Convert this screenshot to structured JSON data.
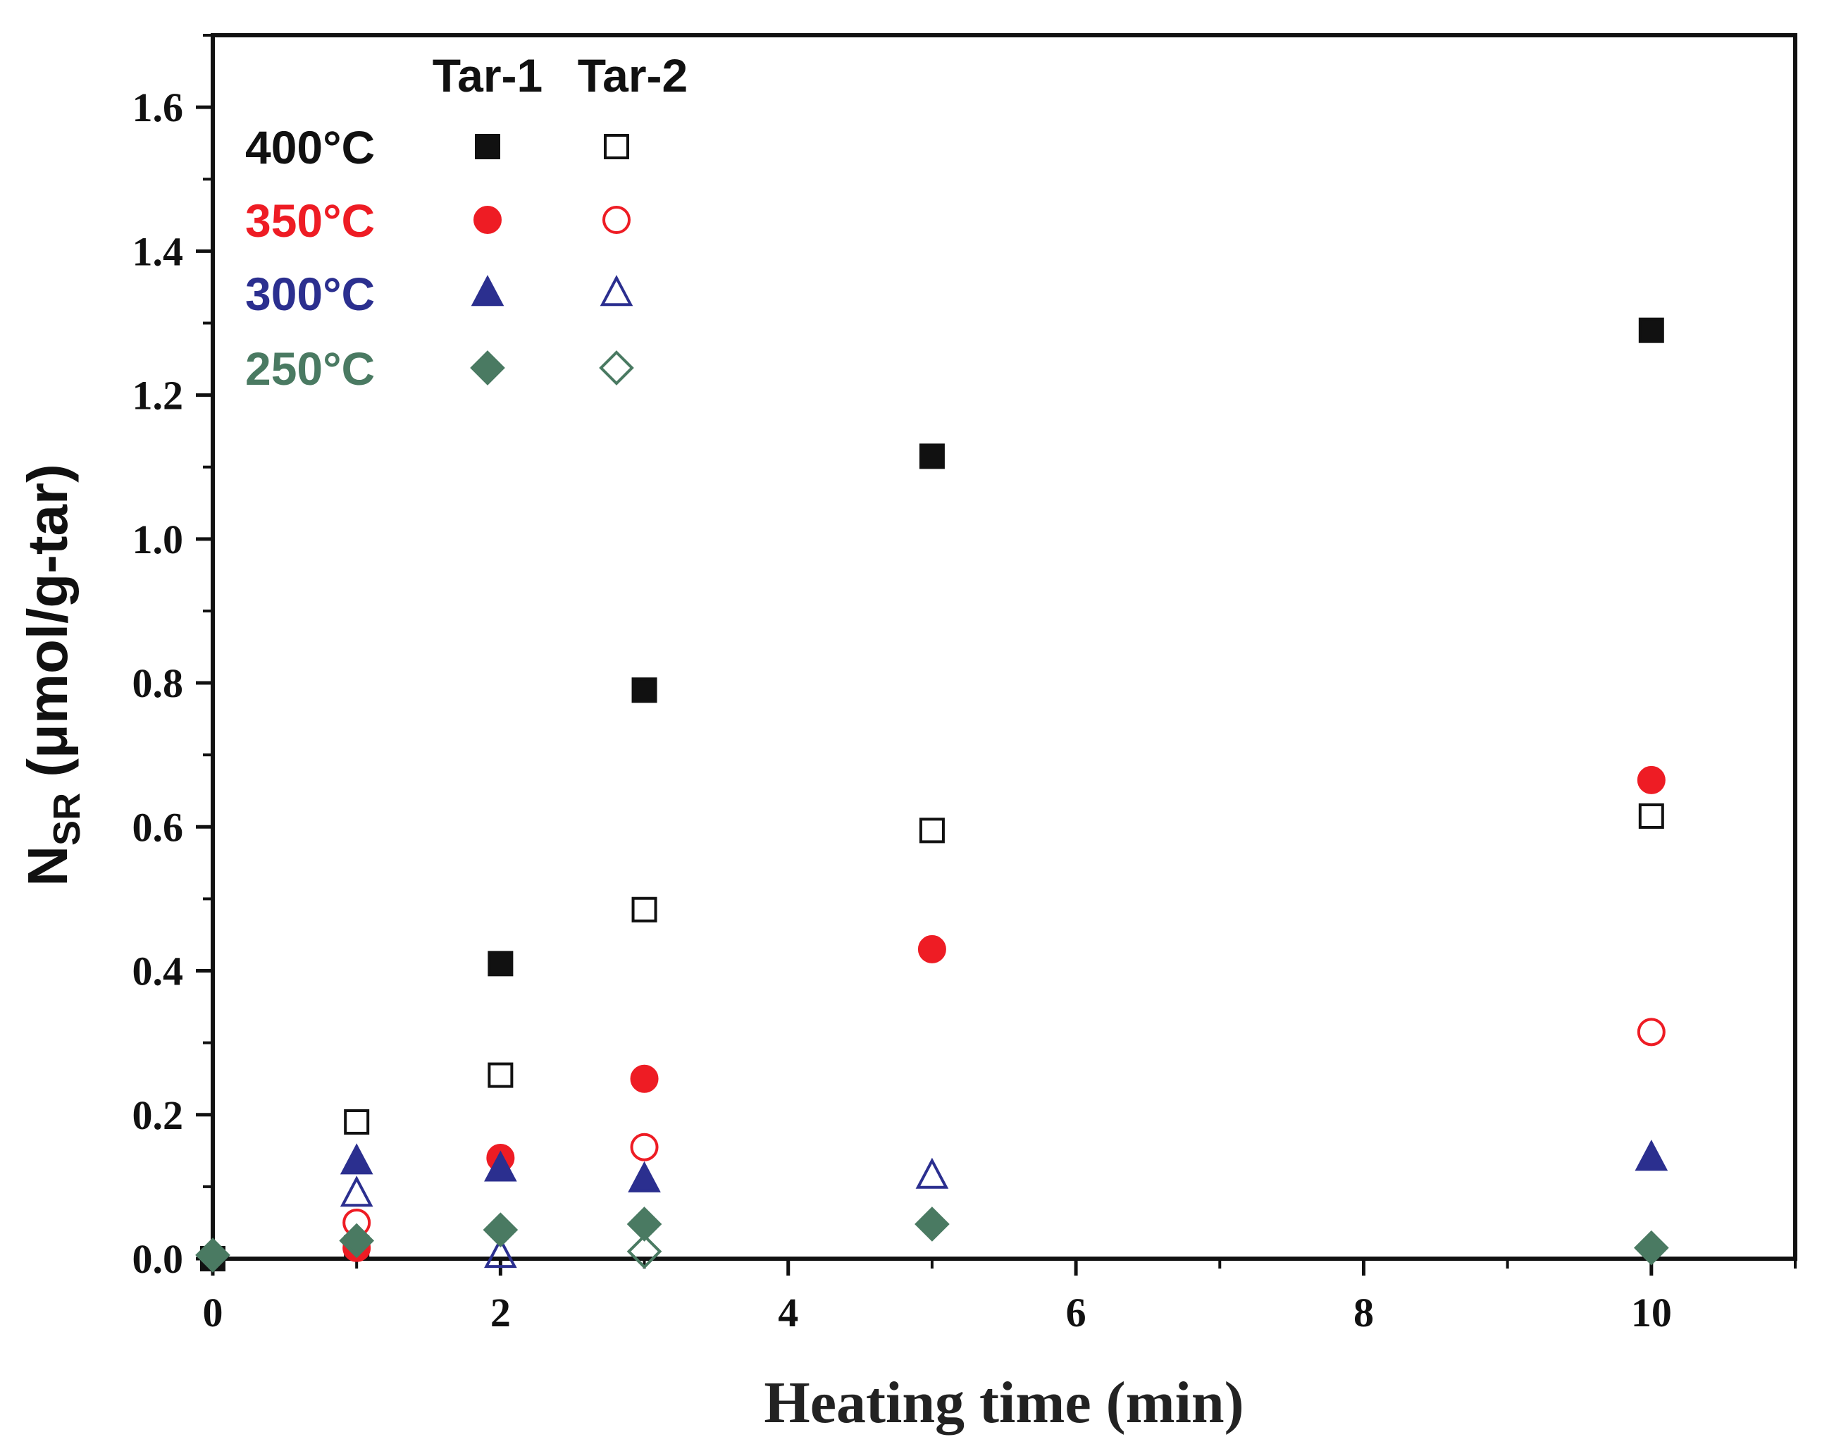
{
  "chart_data": {
    "type": "scatter",
    "title": "",
    "xlabel": "Heating time (min)",
    "ylabel_main": "N",
    "ylabel_sub": "SR",
    "ylabel_rest": " (μmol/g-tar)",
    "xlim": [
      0,
      11
    ],
    "ylim": [
      0,
      1.7
    ],
    "xticks": [
      0,
      2,
      4,
      6,
      8,
      10
    ],
    "xtick_labels": [
      "0",
      "2",
      "4",
      "6",
      "8",
      "10"
    ],
    "yticks": [
      0,
      0.2,
      0.4,
      0.6,
      0.8,
      1.0,
      1.2,
      1.4,
      1.6
    ],
    "ytick_labels": [
      "0.0",
      "0.2",
      "0.4",
      "0.6",
      "0.8",
      "1.0",
      "1.2",
      "1.4",
      "1.6"
    ],
    "grid": false,
    "legend": {
      "placement": "top-left",
      "column_headers": [
        "Tar-1",
        "Tar-2"
      ],
      "rows": [
        {
          "label": "400°C",
          "color": "#111111",
          "marker": "square"
        },
        {
          "label": "350°C",
          "color": "#ee1c24",
          "marker": "circle"
        },
        {
          "label": "300°C",
          "color": "#2b2f8f",
          "marker": "triangle"
        },
        {
          "label": "250°C",
          "color": "#4a7a62",
          "marker": "diamond"
        }
      ]
    },
    "series": [
      {
        "name": "400°C Tar-1",
        "color": "#111111",
        "marker": "square",
        "filled": true,
        "x": [
          0,
          1,
          2,
          3,
          5,
          10
        ],
        "y": [
          0.0,
          0.015,
          0.41,
          0.79,
          1.115,
          1.29
        ]
      },
      {
        "name": "400°C Tar-2",
        "color": "#111111",
        "marker": "square",
        "filled": false,
        "x": [
          1,
          2,
          3,
          5,
          10
        ],
        "y": [
          0.19,
          0.255,
          0.485,
          0.595,
          0.615
        ]
      },
      {
        "name": "350°C Tar-1",
        "color": "#ee1c24",
        "marker": "circle",
        "filled": true,
        "x": [
          1,
          2,
          3,
          5,
          10
        ],
        "y": [
          0.015,
          0.14,
          0.25,
          0.43,
          0.665
        ]
      },
      {
        "name": "350°C Tar-2",
        "color": "#ee1c24",
        "marker": "circle",
        "filled": false,
        "x": [
          1,
          3,
          10
        ],
        "y": [
          0.05,
          0.155,
          0.315
        ]
      },
      {
        "name": "300°C Tar-1",
        "color": "#2b2f8f",
        "marker": "triangle",
        "filled": true,
        "x": [
          1,
          2,
          3,
          10
        ],
        "y": [
          0.135,
          0.125,
          0.11,
          0.14
        ]
      },
      {
        "name": "300°C Tar-2",
        "color": "#2b2f8f",
        "marker": "triangle",
        "filled": false,
        "x": [
          1,
          2,
          5
        ],
        "y": [
          0.09,
          0.005,
          0.115
        ]
      },
      {
        "name": "250°C Tar-1",
        "color": "#4a7a62",
        "marker": "diamond",
        "filled": true,
        "x": [
          0,
          1,
          2,
          3,
          5,
          10
        ],
        "y": [
          0.005,
          0.025,
          0.04,
          0.048,
          0.048,
          0.015
        ]
      },
      {
        "name": "250°C Tar-2",
        "color": "#4a7a62",
        "marker": "diamond",
        "filled": false,
        "x": [
          3
        ],
        "y": [
          0.01
        ]
      }
    ]
  }
}
